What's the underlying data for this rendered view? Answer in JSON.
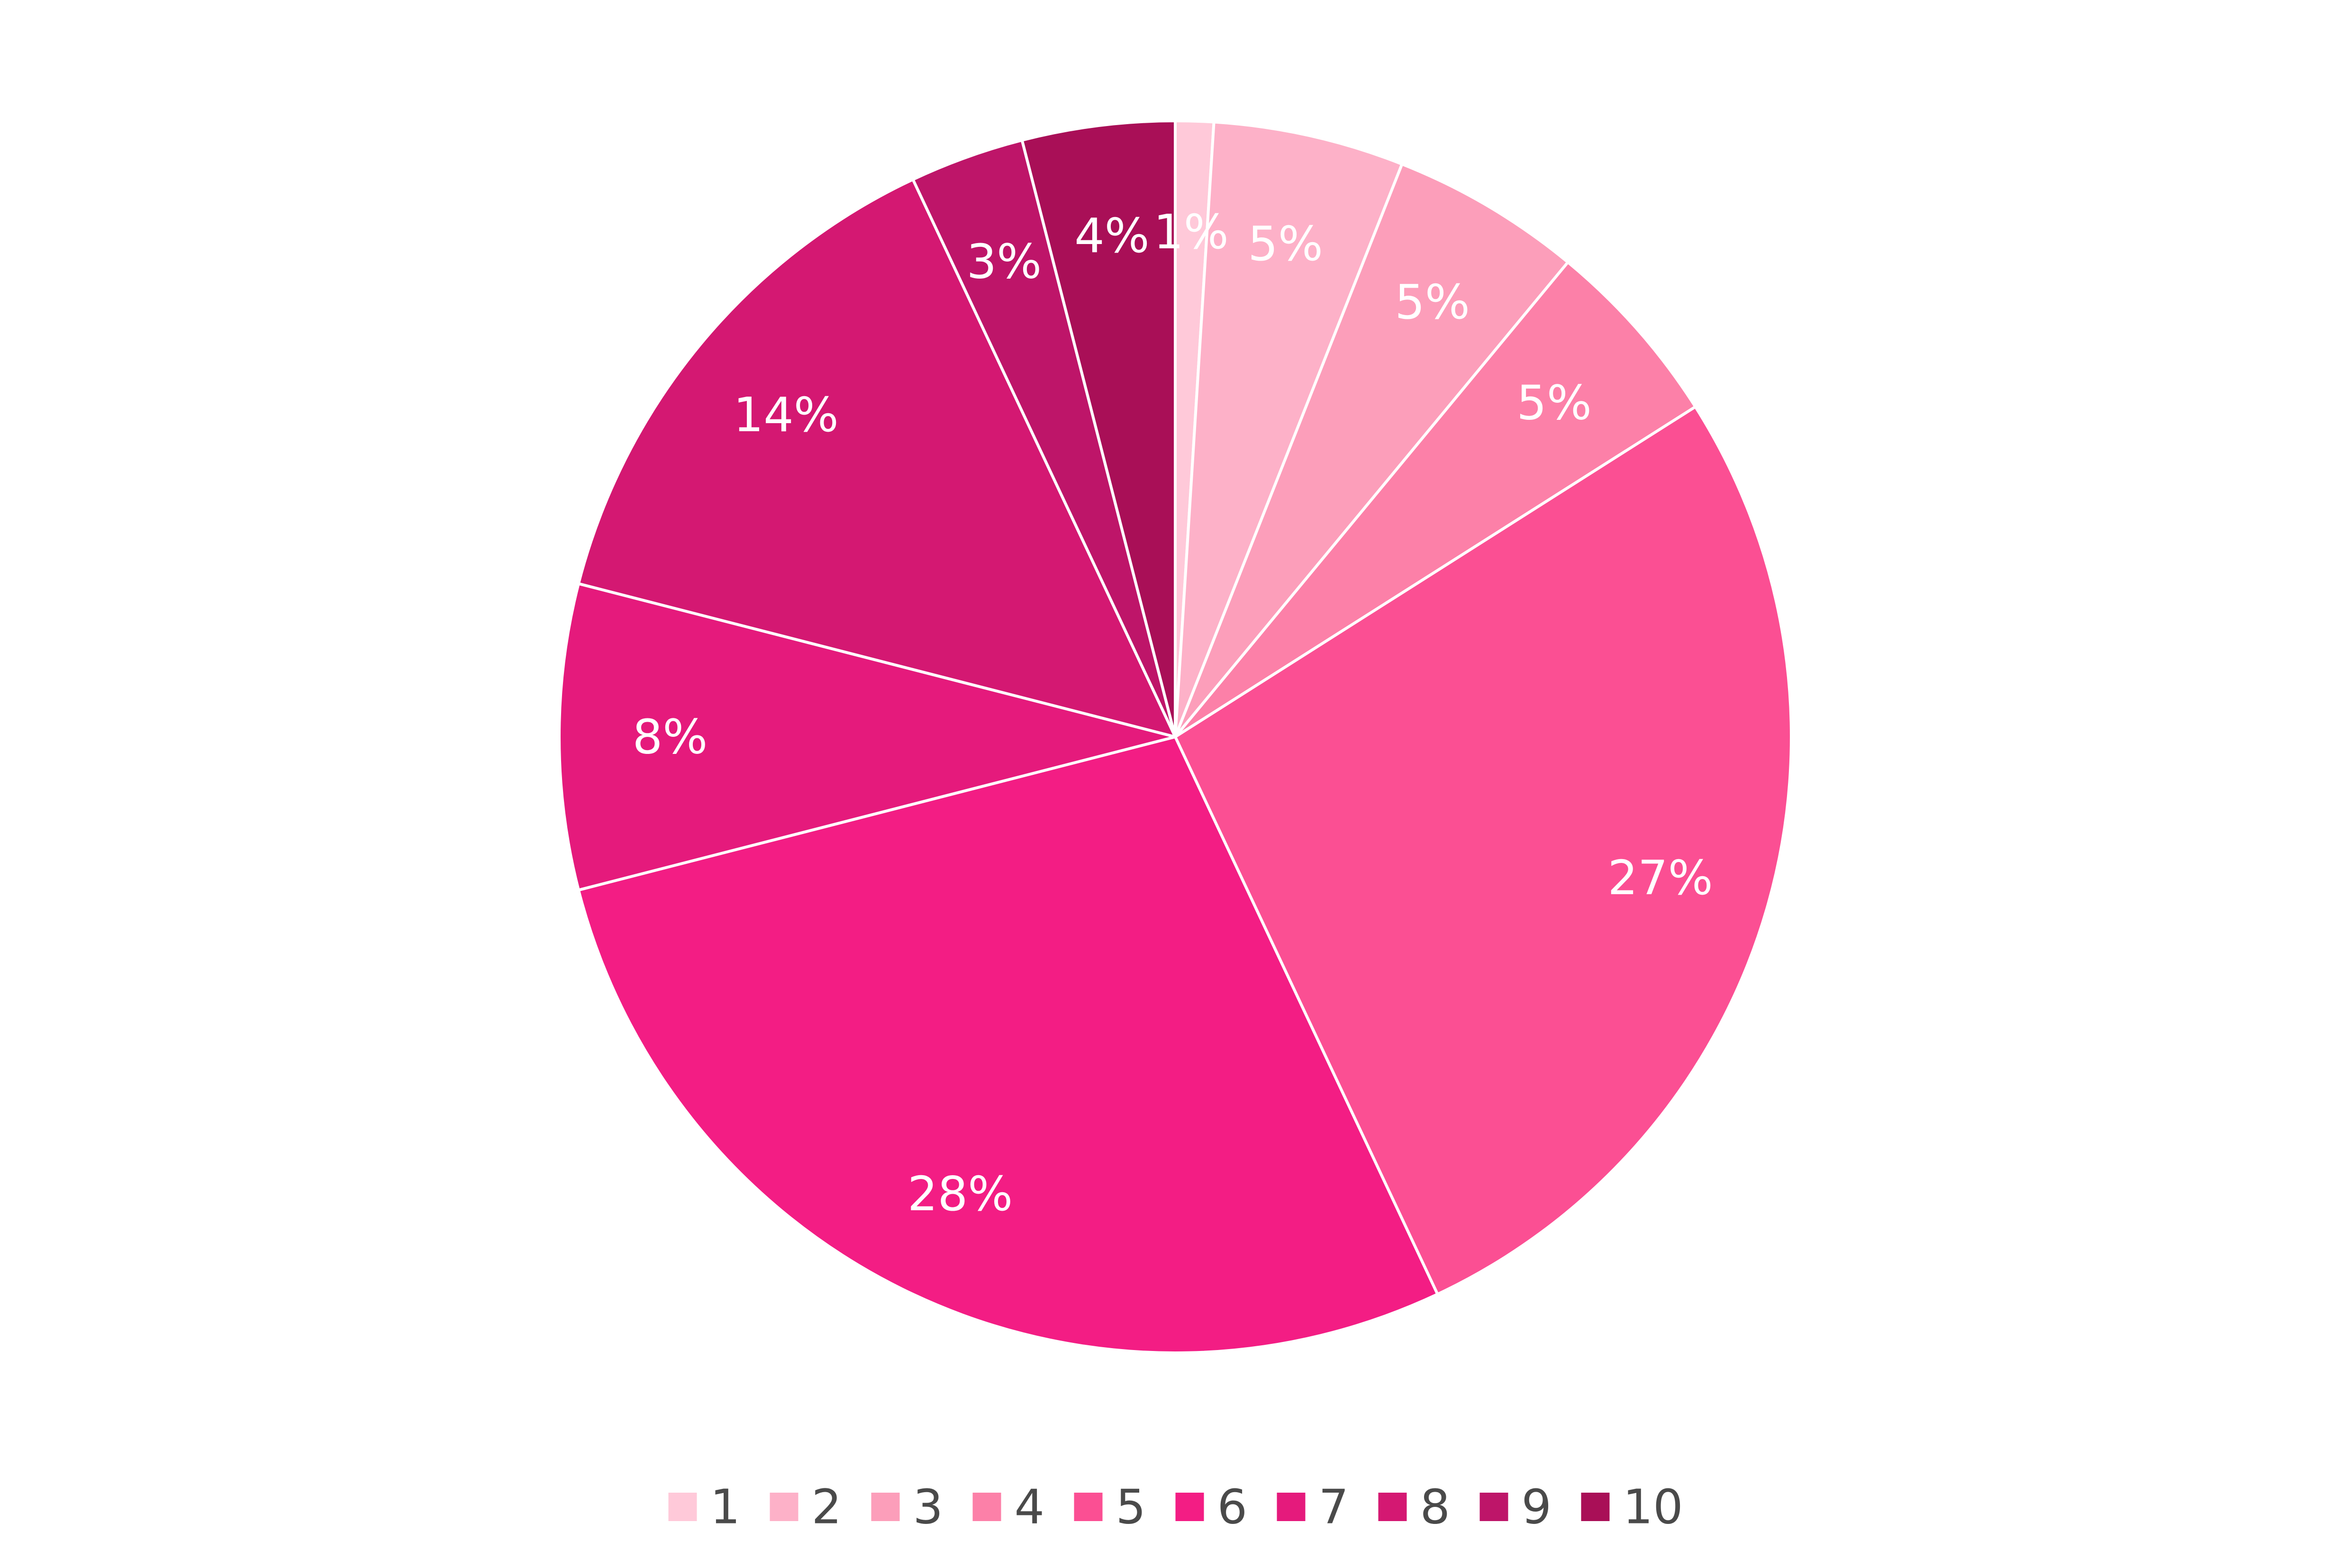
{
  "chart_data": {
    "type": "pie",
    "categories": [
      "1",
      "2",
      "3",
      "4",
      "5",
      "6",
      "7",
      "8",
      "9",
      "10"
    ],
    "values": [
      1,
      5,
      5,
      5,
      27,
      28,
      8,
      14,
      3,
      4
    ],
    "labels": [
      "1%",
      "5%",
      "5%",
      "5%",
      "27%",
      "28%",
      "8%",
      "14%",
      "3%",
      "4%"
    ],
    "colors": [
      "#ffc9d9",
      "#fdb1c8",
      "#fc9eba",
      "#fc80a8",
      "#fb4f93",
      "#f31d84",
      "#e51a7c",
      "#d41872",
      "#be1569",
      "#a90f57"
    ],
    "start_angle_deg": 0,
    "direction": "clockwise",
    "legend_position": "bottom"
  }
}
